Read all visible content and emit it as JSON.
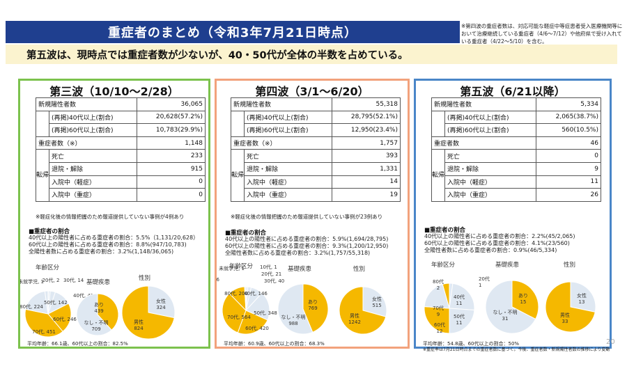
{
  "header": {
    "title": "重症者のまとめ（令和3年7月21日時点）",
    "note": "※第四波の重症者数は、対応可能な軽症中等症患者受入医療機関等において治療継続している重症者（4/6〜7/12）や他府県で受け入れている重症者（4/22〜5/10）を含む。"
  },
  "headline": "第五波は、現時点では重症者数が少ないが、40・50代が全体の半数を占めている。",
  "panels": [
    {
      "title": "第三波（10/10〜2/28）",
      "color": "#7cc24d",
      "table": {
        "new_cases_label": "新規陽性者数",
        "new_cases": "36,065",
        "over40_label": "(再掲)40代以上(割合)",
        "over40": "20,628(57.2%)",
        "over60_label": "(再掲)60代以上(割合)",
        "over60": "10,783(29.9%)",
        "severe_label": "重症者数（※）",
        "severe": "1,148",
        "outcome_label": "転帰",
        "death_label": "死亡",
        "death": "233",
        "discharge_label": "退院・解除",
        "discharge": "915",
        "mild_label": "入院中（軽症）",
        "mild": "0",
        "severe_in_label": "入院中（重症）",
        "severe_in": "0"
      },
      "note": "※軽症化後の情報把握のため報道提供していない事例が4例あり",
      "ratio_head": "■重症者の割合",
      "ratio_lines": [
        "40代以上の陽性者に占める重症者の割合：5.5%（1,131/20,628）",
        "60代以上の陽性者に占める重症者の割合：8.8%(947/10,783)",
        "全陽性者数に占める重症者の割合：3.2%(1,148/36,065)"
      ],
      "chart_labels": {
        "age": "年齢区分",
        "disease": "基礎疾患",
        "sex": "性別"
      },
      "footer": "平均年齢：66.1歳、60代以上の割合：82.5%"
    },
    {
      "title": "第四波（3/1〜6/20）",
      "color": "#f2a27c",
      "table": {
        "new_cases_label": "新規陽性者数",
        "new_cases": "55,318",
        "over40_label": "(再掲)40代以上(割合)",
        "over40": "28,795(52.1%)",
        "over60_label": "(再掲)60代以上(割合)",
        "over60": "12,950(23.4%)",
        "severe_label": "重症者数（※）",
        "severe": "1,757",
        "outcome_label": "転帰",
        "death_label": "死亡",
        "death": "393",
        "discharge_label": "退院・解除",
        "discharge": "1,331",
        "mild_label": "入院中（軽症）",
        "mild": "14",
        "severe_in_label": "入院中（重症）",
        "severe_in": "19"
      },
      "note": "※軽症化後の情報把握のため報道提供していない事例が23例あり",
      "ratio_head": "■重症者の割合",
      "ratio_lines": [
        "40代以上の陽性者に占める重症者の割合：5.9%(1,694/28,795)",
        "60代以上の陽性者に占める重症者の割合：9.3%(1,200/12,950)",
        "全陽性者数に占める重症者の割合：3.2%(1,757/55,318)"
      ],
      "chart_labels": {
        "age": "年齢区分",
        "disease": "基礎疾患",
        "sex": "性別"
      },
      "footer": "平均年齢：60.9歳、60代以上の割合：68.3%"
    },
    {
      "title": "第五波（6/21以降）",
      "color": "#4a86c8",
      "table": {
        "new_cases_label": "新規陽性者数",
        "new_cases": "5,334",
        "over40_label": "(再掲)40代以上(割合)",
        "over40": "2,065(38.7%)",
        "over60_label": "(再掲)60代以上(割合)",
        "over60": "560(10.5%)",
        "severe_label": "重症者数",
        "severe": "46",
        "outcome_label": "転帰",
        "death_label": "死亡",
        "death": "0",
        "discharge_label": "退院・解除",
        "discharge": "9",
        "mild_label": "入院中（軽症）",
        "mild": "11",
        "severe_in_label": "入院中（重症）",
        "severe_in": "26"
      },
      "note": "",
      "ratio_head": "■重症者の割合",
      "ratio_lines": [
        "40代以上の陽性者に占める重症者の割合：2.2%(45/2,065)",
        "60代以上の陽性者に占める重症者の割合：4.1%(23/560)",
        "全陽性者数に占める重症者の割合：0.9%(46/5,334)"
      ],
      "chart_labels": {
        "age": "年齢区分",
        "disease": "基礎疾患",
        "sex": "性別"
      },
      "footer": "平均年齢：54.8歳、60代以上の割合：50%",
      "footer2": "※重症率は7月21日時点までの重症者数に基づく。今後、重症者数・新規陽性者数の推移により変動"
    }
  ],
  "colors": {
    "yellow": "#f5b800",
    "light": "#dfe8f2"
  },
  "page_number": "20",
  "chart_data": [
    {
      "type": "pie",
      "panel": "第三波",
      "name": "年齢区分",
      "labels": [
        "未就学児",
        "20代",
        "30代",
        "40代",
        "50代",
        "60代",
        "70代",
        "80代",
        "90代"
      ],
      "values": [
        1,
        2,
        14,
        42,
        142,
        246,
        451,
        224,
        26
      ],
      "label_text": [
        "未就学児, 1",
        "20代, 2",
        "30代, 14",
        "40代, 42",
        "50代, 142",
        "60代, 246",
        "70代, 451",
        "80代, 224",
        "90代, 26"
      ]
    },
    {
      "type": "pie",
      "panel": "第三波",
      "name": "基礎疾患",
      "labels": [
        "あり",
        "なし・不明"
      ],
      "values": [
        439,
        709
      ],
      "label_text": [
        "あり, 439",
        "なし・不明, 709"
      ]
    },
    {
      "type": "pie",
      "panel": "第三波",
      "name": "性別",
      "labels": [
        "女性",
        "男性"
      ],
      "values": [
        324,
        824
      ],
      "label_text": [
        "女性, 324",
        "男性, 824"
      ]
    },
    {
      "type": "pie",
      "panel": "第四波",
      "name": "年齢区分",
      "labels": [
        "未就学児",
        "10代",
        "20代",
        "30代",
        "40代",
        "50代",
        "60代",
        "70代",
        "80代",
        "90代"
      ],
      "values": [
        1,
        1,
        21,
        40,
        146,
        348,
        420,
        564,
        200,
        16
      ],
      "label_text": [
        "未就学児, 1",
        "10代, 1",
        "20代, 21",
        "30代, 40",
        "40代, 146",
        "50代, 348",
        "60代, 420",
        "70代, 564",
        "80代, 200",
        "90代, 16"
      ]
    },
    {
      "type": "pie",
      "panel": "第四波",
      "name": "基礎疾患",
      "labels": [
        "あり",
        "なし・不明"
      ],
      "values": [
        769,
        988
      ],
      "label_text": [
        "あり, 769",
        "なし・不明, 988"
      ]
    },
    {
      "type": "pie",
      "panel": "第四波",
      "name": "性別",
      "labels": [
        "女性",
        "男性"
      ],
      "values": [
        515,
        1242
      ],
      "label_text": [
        "女性, 515",
        "男性, 1242"
      ]
    },
    {
      "type": "pie",
      "panel": "第五波",
      "name": "年齢区分",
      "labels": [
        "20代",
        "40代",
        "50代",
        "60代",
        "70代",
        "80代"
      ],
      "values": [
        1,
        11,
        11,
        12,
        9,
        2
      ],
      "label_text": [
        "20代, 1",
        "40代, 11",
        "50代, 11",
        "60代, 12",
        "70代, 9",
        "80代, 2"
      ]
    },
    {
      "type": "pie",
      "panel": "第五波",
      "name": "基礎疾患",
      "labels": [
        "あり",
        "なし・不明"
      ],
      "values": [
        15,
        31
      ],
      "label_text": [
        "あり, 15",
        "なし・不明, 31"
      ]
    },
    {
      "type": "pie",
      "panel": "第五波",
      "name": "性別",
      "labels": [
        "女性",
        "男性"
      ],
      "values": [
        13,
        33
      ],
      "label_text": [
        "女性, 13",
        "男性, 33"
      ]
    }
  ]
}
